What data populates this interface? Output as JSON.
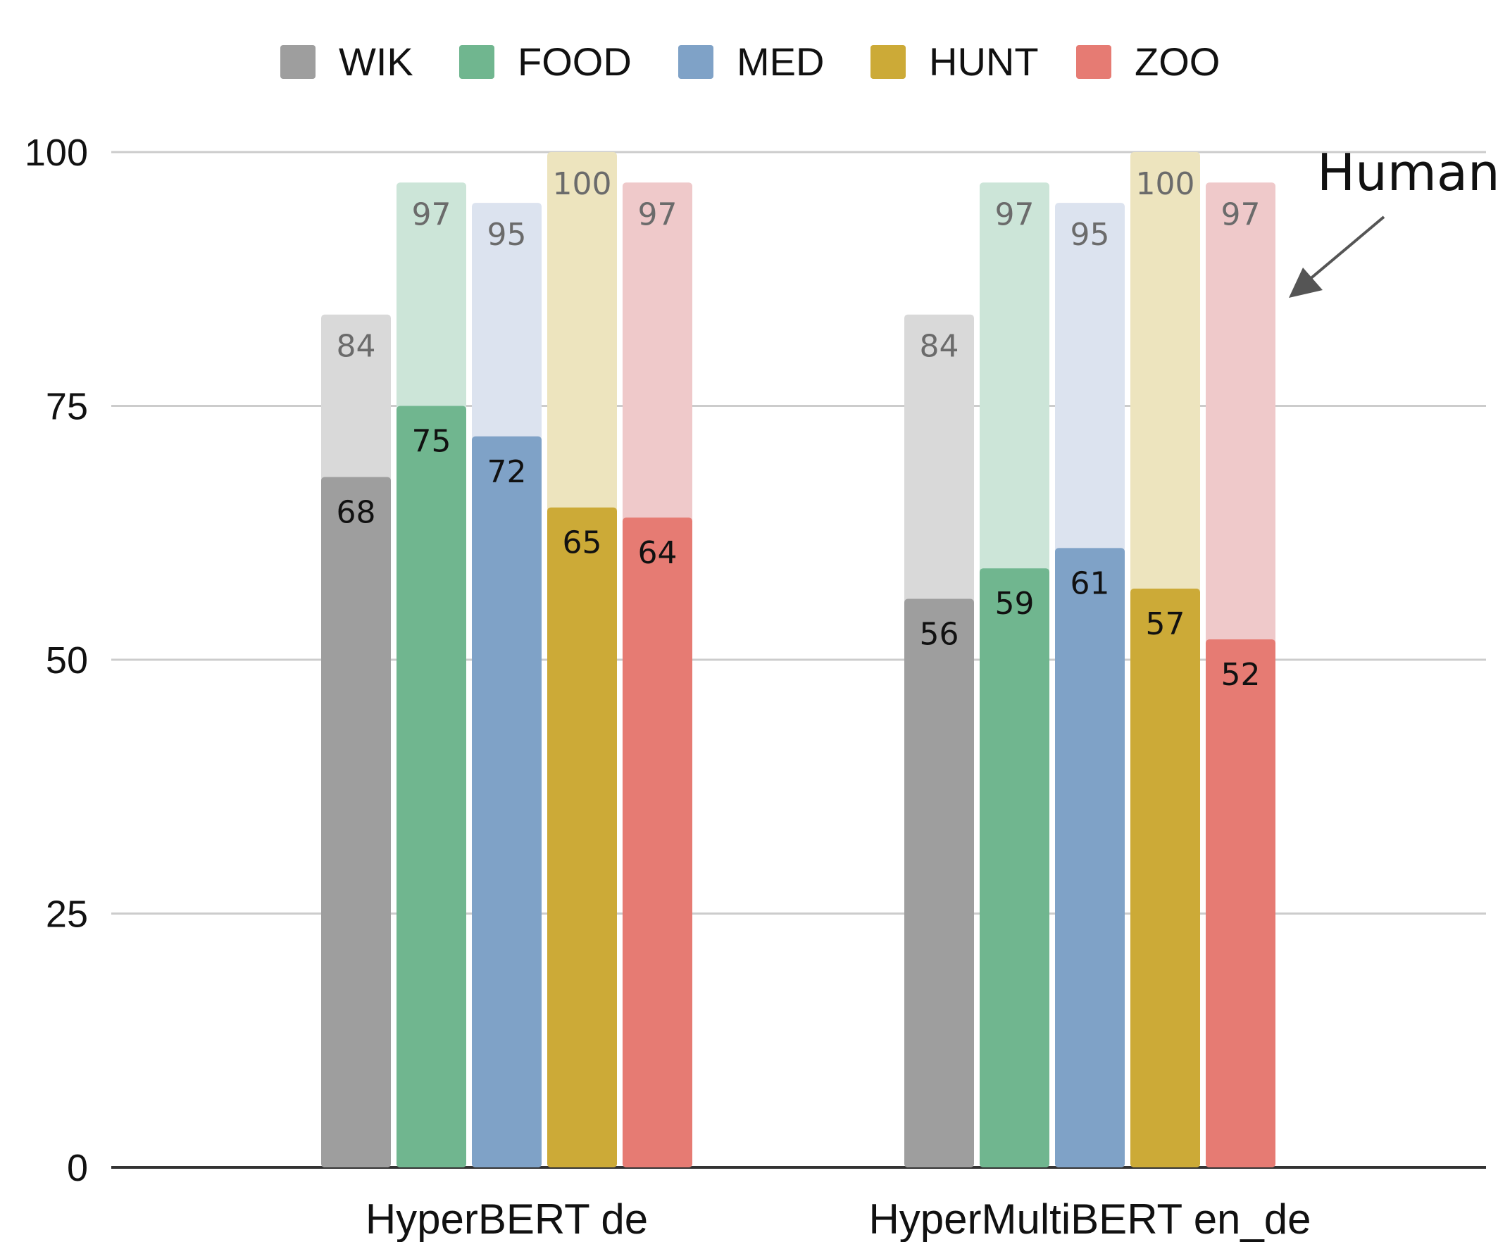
{
  "chart_data": {
    "type": "bar",
    "categories": [
      "HyperBERT de",
      "HyperMultiBERT en_de"
    ],
    "series": [
      {
        "name": "WIK",
        "values": [
          68,
          56
        ],
        "human": [
          84,
          84
        ],
        "color": "#9e9e9e",
        "human_color": "#d9d9d9"
      },
      {
        "name": "FOOD",
        "values": [
          75,
          59
        ],
        "human": [
          97,
          97
        ],
        "color": "#70b68f",
        "human_color": "#cce5d8"
      },
      {
        "name": "MED",
        "values": [
          72,
          61
        ],
        "human": [
          95,
          95
        ],
        "color": "#7fa2c7",
        "human_color": "#dce3ef"
      },
      {
        "name": "HUNT",
        "values": [
          65,
          57
        ],
        "human": [
          100,
          100
        ],
        "color": "#ccaa37",
        "human_color": "#ede4be"
      },
      {
        "name": "ZOO",
        "values": [
          64,
          52
        ],
        "human": [
          97,
          97
        ],
        "color": "#e67b73",
        "human_color": "#efc9ca"
      }
    ],
    "ylim": [
      0,
      100
    ],
    "yticks": [
      "0",
      "25",
      "50",
      "75",
      "100"
    ],
    "grid": true,
    "legend_position": "top",
    "annotation": "Human",
    "grid_color": "#cccccc",
    "axis_color": "#333333",
    "arrow_color": "#555555"
  }
}
